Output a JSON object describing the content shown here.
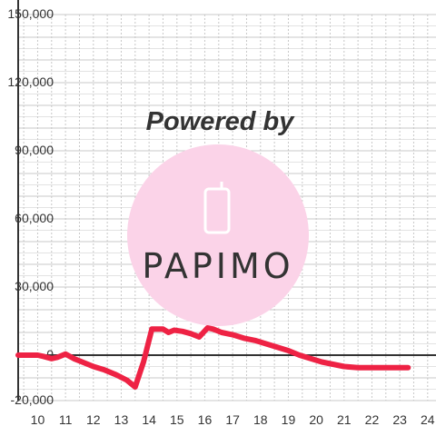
{
  "chart_data": {
    "type": "line",
    "title": "",
    "xlabel": "",
    "ylabel": "",
    "xlim": [
      9.3,
      24.3
    ],
    "ylim": [
      -20000,
      150000
    ],
    "x_ticks": [
      "10",
      "11",
      "12",
      "13",
      "14",
      "15",
      "16",
      "17",
      "18",
      "19",
      "20",
      "21",
      "22",
      "23",
      "24"
    ],
    "y_ticks": [
      "150,000",
      "120,000",
      "90,000",
      "60,000",
      "30,000",
      "0",
      "-20,000"
    ],
    "grid": true,
    "series": [
      {
        "color": "#ee2244",
        "x": [
          9.3,
          10.0,
          10.2,
          10.5,
          10.7,
          11.0,
          11.3,
          11.6,
          12.0,
          12.4,
          12.8,
          13.2,
          13.5,
          13.8,
          14.1,
          14.5,
          14.7,
          14.9,
          15.2,
          15.5,
          15.8,
          16.1,
          16.3,
          16.6,
          17.0,
          17.4,
          17.8,
          18.2,
          18.6,
          19.0,
          19.4,
          19.8,
          20.2,
          20.6,
          21.0,
          21.5,
          22.0,
          22.5,
          23.0,
          23.3
        ],
        "y": [
          0,
          0,
          -500,
          -1500,
          -1000,
          500,
          -1500,
          -3000,
          -5000,
          -6500,
          -8500,
          -11000,
          -14000,
          -3000,
          11500,
          11500,
          10000,
          11000,
          10500,
          9500,
          8000,
          12000,
          11500,
          10000,
          9000,
          7500,
          6500,
          5000,
          3500,
          2000,
          0,
          -1500,
          -3000,
          -4000,
          -5000,
          -5500,
          -5500,
          -5500,
          -5500,
          -5500
        ]
      }
    ]
  },
  "watermark": {
    "text": "Powered by",
    "logo": "PAPIMO",
    "circle_color": "#fbd3e8",
    "text_color": "#fbd3e8"
  }
}
